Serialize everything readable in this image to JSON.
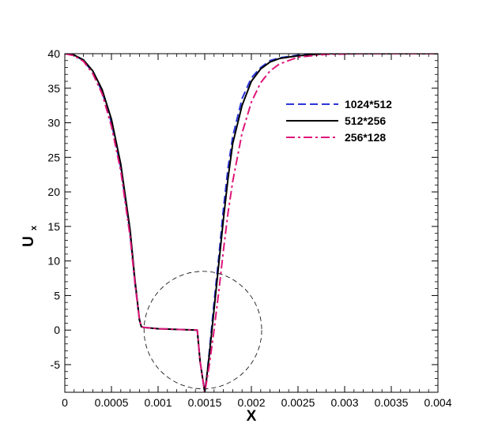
{
  "chart_data": {
    "type": "line",
    "title": "",
    "xlabel": "X",
    "ylabel_main": "U",
    "ylabel_sub": "x",
    "xlim": [
      0,
      0.004
    ],
    "ylim": [
      -9,
      40
    ],
    "x_ticks": [
      "0",
      "0.0005",
      "0.001",
      "0.0015",
      "0.002",
      "0.0025",
      "0.003",
      "0.0035",
      "0.004"
    ],
    "y_ticks": [
      "-5",
      "0",
      "5",
      "10",
      "15",
      "20",
      "25",
      "30",
      "35",
      "40"
    ],
    "grid": false,
    "legend_position": "top-right",
    "series": [
      {
        "name": "1024*512",
        "color": "#2b35d8",
        "dash": "dashed",
        "x": [
          0,
          0.0001,
          0.0002,
          0.0003,
          0.0004,
          0.0005,
          0.0006,
          0.0007,
          0.00075,
          0.0008,
          0.00082,
          0.00084,
          0.001,
          0.0012,
          0.00142,
          0.00145,
          0.0015,
          0.00152,
          0.00155,
          0.0016,
          0.00165,
          0.0017,
          0.00175,
          0.0018,
          0.0019,
          0.002,
          0.0021,
          0.0022,
          0.0023,
          0.0025,
          0.0028,
          0.0032,
          0.0036,
          0.004
        ],
        "y": [
          40,
          39.8,
          39.0,
          37.3,
          34.5,
          30.0,
          23.5,
          14.0,
          7.0,
          1.5,
          0.5,
          0.4,
          0.2,
          0.1,
          0.0,
          -4.5,
          -9.0,
          -7.0,
          -3.0,
          4.0,
          10.5,
          17.5,
          23.5,
          28.0,
          33.5,
          36.5,
          38.0,
          39.0,
          39.4,
          39.8,
          40,
          40,
          40,
          40
        ]
      },
      {
        "name": "512*256",
        "color": "#000000",
        "dash": "solid",
        "x": [
          0,
          0.0001,
          0.0002,
          0.0003,
          0.0004,
          0.0005,
          0.0006,
          0.0007,
          0.00075,
          0.0008,
          0.00082,
          0.00084,
          0.001,
          0.0012,
          0.00142,
          0.00145,
          0.0015,
          0.00152,
          0.00155,
          0.0016,
          0.00165,
          0.0017,
          0.00175,
          0.0018,
          0.0019,
          0.002,
          0.0021,
          0.0022,
          0.0023,
          0.0025,
          0.0028,
          0.0032,
          0.0036,
          0.004
        ],
        "y": [
          40,
          39.8,
          39.1,
          37.5,
          34.8,
          30.5,
          24.0,
          14.5,
          7.5,
          1.5,
          0.5,
          0.4,
          0.2,
          0.1,
          0.0,
          -4.5,
          -9.0,
          -7.0,
          -3.5,
          3.0,
          9.5,
          16.0,
          22.0,
          27.0,
          32.5,
          36.0,
          37.8,
          38.8,
          39.3,
          39.7,
          40,
          40,
          40,
          40
        ]
      },
      {
        "name": "256*128",
        "color": "#e0167a",
        "dash": "dashdot",
        "x": [
          0,
          0.0001,
          0.0002,
          0.0003,
          0.0004,
          0.0005,
          0.0006,
          0.0007,
          0.00075,
          0.0008,
          0.00082,
          0.00084,
          0.001,
          0.0012,
          0.00142,
          0.00145,
          0.0015,
          0.00152,
          0.00155,
          0.0016,
          0.00165,
          0.0017,
          0.00175,
          0.0018,
          0.0019,
          0.002,
          0.0021,
          0.0022,
          0.0023,
          0.0025,
          0.0028,
          0.0032,
          0.0036,
          0.004
        ],
        "y": [
          40,
          39.7,
          38.9,
          37.1,
          34.2,
          29.5,
          23.0,
          13.5,
          7.0,
          1.5,
          0.5,
          0.4,
          0.2,
          0.1,
          0.0,
          -4.5,
          -9.0,
          -7.5,
          -5.0,
          0.0,
          5.5,
          11.5,
          17.0,
          21.5,
          28.5,
          33.0,
          35.8,
          37.5,
          38.5,
          39.5,
          39.9,
          40,
          40,
          40
        ]
      }
    ],
    "annotation": {
      "shape": "dashed-circle",
      "center_x": 0.00148,
      "center_y": 0,
      "radius_y": 8.5
    }
  }
}
